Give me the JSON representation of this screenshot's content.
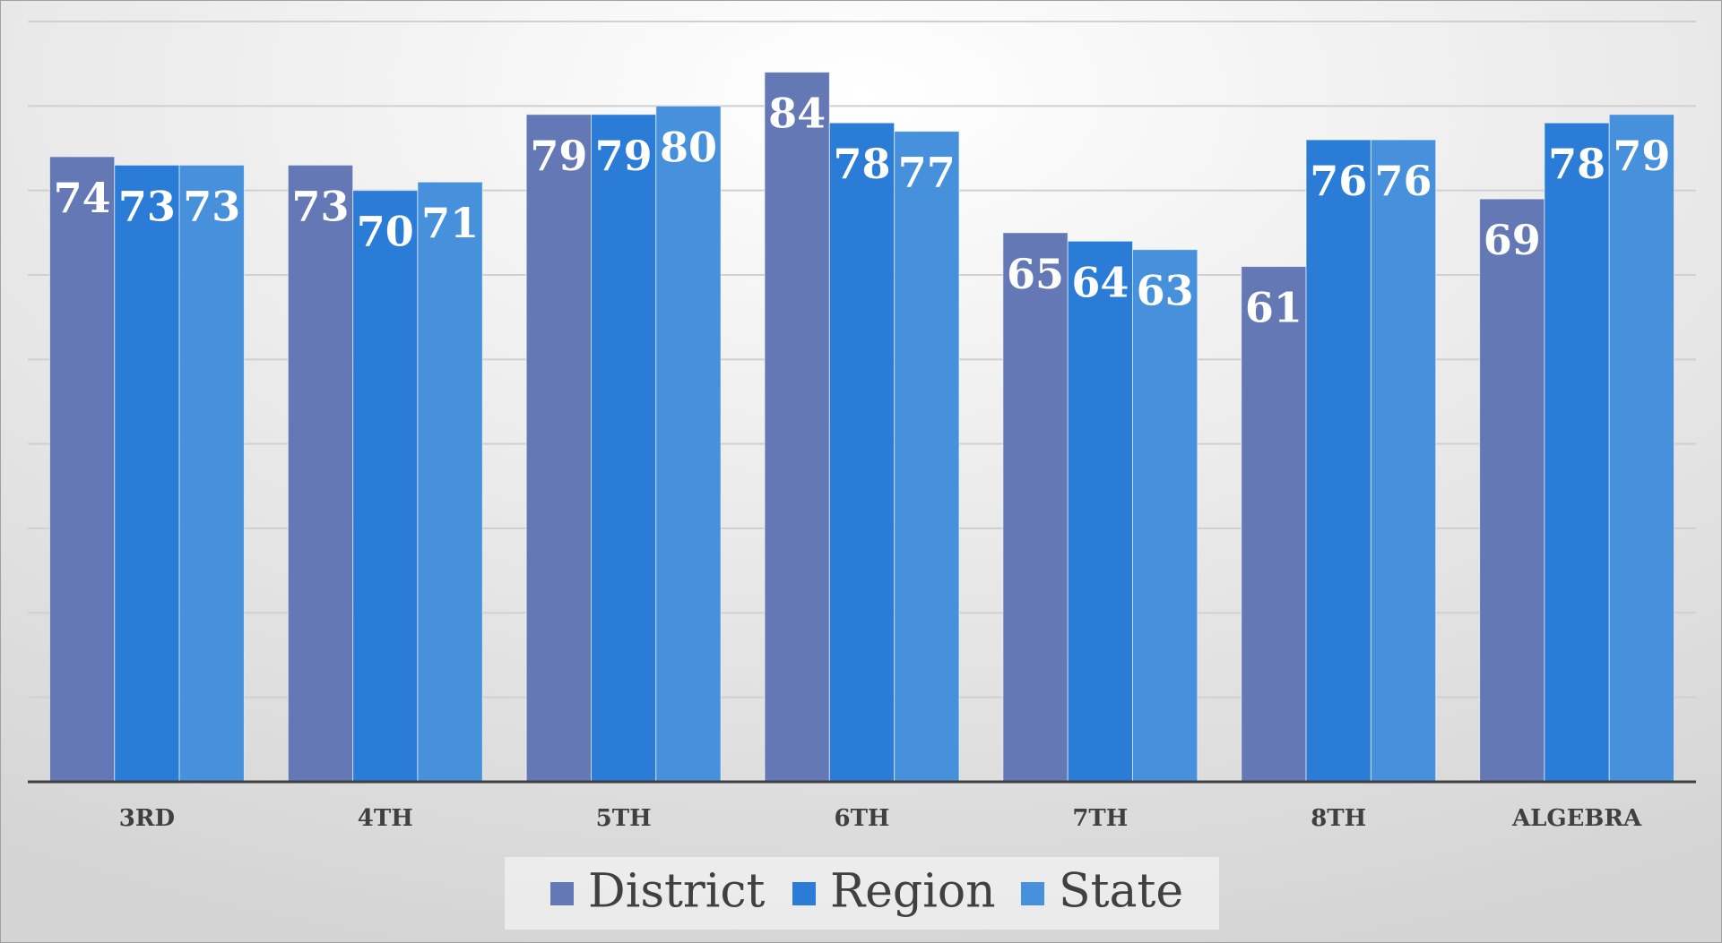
{
  "chart_data": {
    "type": "bar",
    "categories": [
      "3RD",
      "4TH",
      "5TH",
      "6TH",
      "7TH",
      "8TH",
      "ALGEBRA"
    ],
    "series": [
      {
        "name": "District",
        "color": "#6478b5",
        "values": [
          74,
          73,
          79,
          84,
          65,
          61,
          69
        ]
      },
      {
        "name": "Region",
        "color": "#2a7cd7",
        "values": [
          73,
          70,
          79,
          78,
          64,
          76,
          78
        ]
      },
      {
        "name": "State",
        "color": "#4690dc",
        "values": [
          73,
          71,
          80,
          77,
          63,
          76,
          79
        ]
      }
    ],
    "ylim": [
      0,
      90
    ],
    "yticks": [
      0,
      10,
      20,
      30,
      40,
      50,
      60,
      70,
      80,
      90
    ],
    "grid": true,
    "legend": "bottom",
    "data_labels": true
  }
}
